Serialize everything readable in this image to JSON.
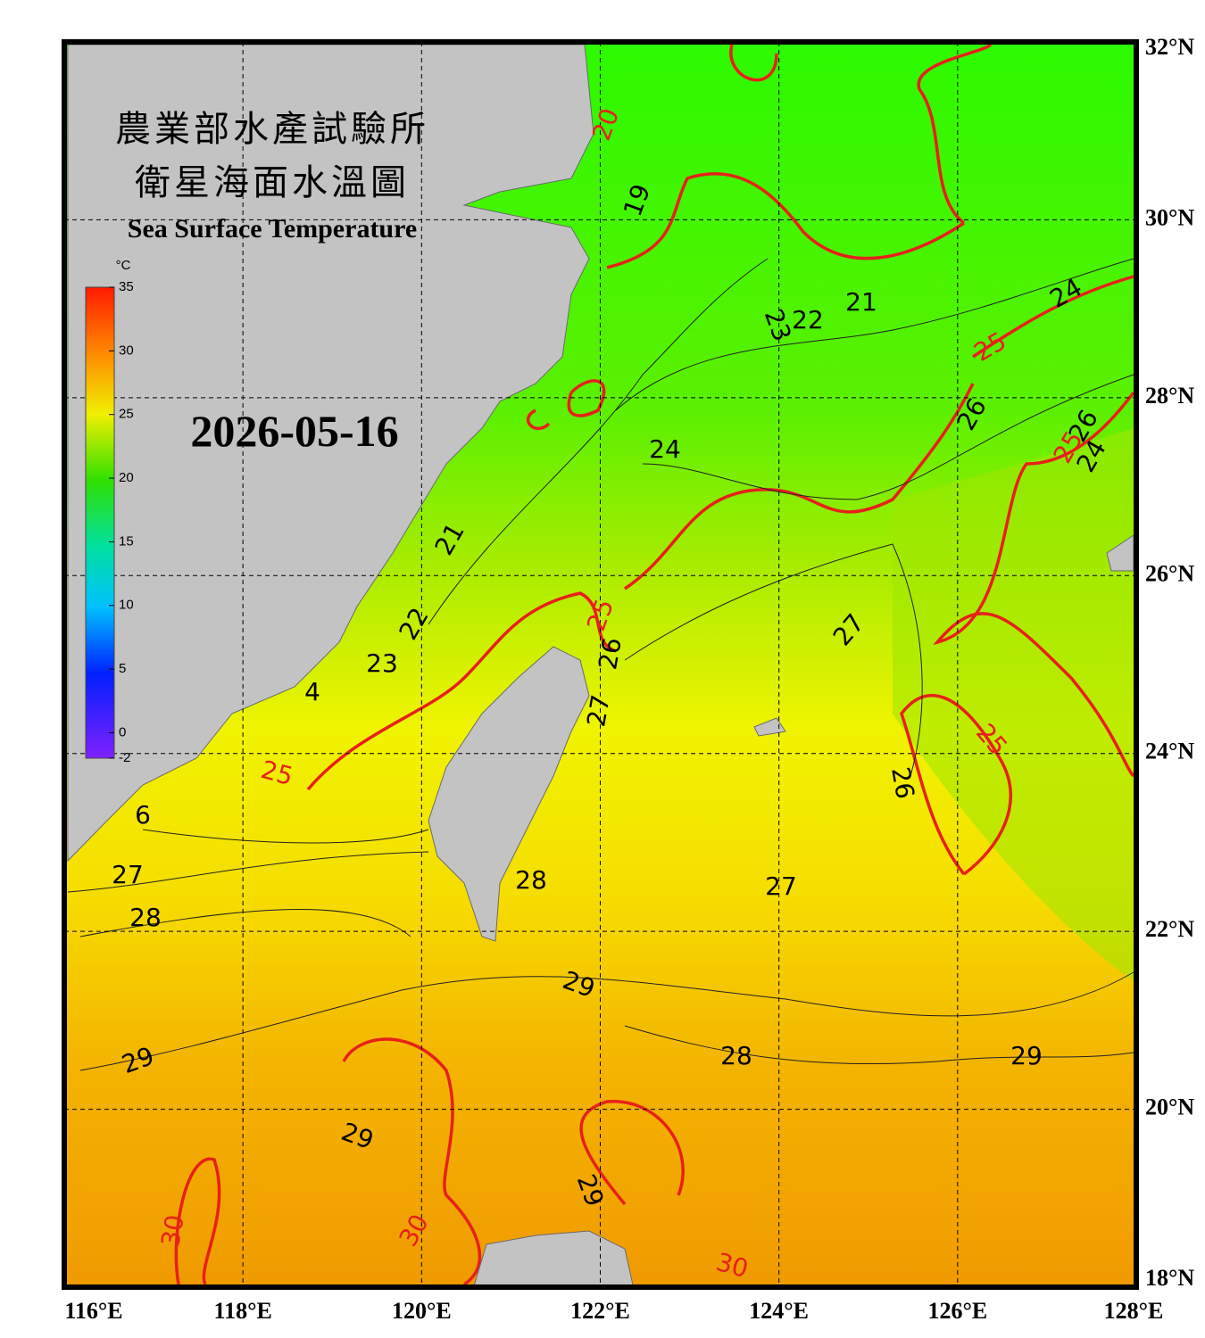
{
  "header": {
    "title_zh_1": "農業部水產試驗所",
    "title_zh_2": "衛星海面水溫圖",
    "title_en": "Sea Surface Temperature",
    "date": "2026-05-16"
  },
  "colorbar": {
    "unit": "°C",
    "range": [
      -2,
      35
    ],
    "ticks": [
      -2,
      0,
      5,
      10,
      15,
      20,
      25,
      30,
      35
    ]
  },
  "map": {
    "lon_range": [
      116,
      128
    ],
    "lat_range": [
      18,
      32
    ],
    "lon_ticks": [
      {
        "value": 116,
        "label": "116°E"
      },
      {
        "value": 118,
        "label": "118°E"
      },
      {
        "value": 120,
        "label": "120°E"
      },
      {
        "value": 122,
        "label": "122°E"
      },
      {
        "value": 124,
        "label": "124°E"
      },
      {
        "value": 126,
        "label": "126°E"
      },
      {
        "value": 128,
        "label": "128°E"
      }
    ],
    "lat_ticks": [
      {
        "value": 32,
        "label": "32°N"
      },
      {
        "value": 30,
        "label": "30°N"
      },
      {
        "value": 28,
        "label": "28°N"
      },
      {
        "value": 26,
        "label": "26°N"
      },
      {
        "value": 24,
        "label": "24°N"
      },
      {
        "value": 22,
        "label": "22°N"
      },
      {
        "value": 20,
        "label": "20°N"
      },
      {
        "value": 18,
        "label": "18°N"
      }
    ],
    "contour_labels": [
      "20",
      "19",
      "21",
      "22",
      "23",
      "24",
      "25",
      "26",
      "26",
      "25",
      "24",
      "24",
      "21",
      "22",
      "23",
      "4",
      "25",
      "26",
      "27",
      "27",
      "25",
      "6",
      "27",
      "28",
      "28",
      "27",
      "26",
      "25",
      "29",
      "28",
      "29",
      "29",
      "29",
      "29",
      "30",
      "30",
      "30"
    ]
  }
}
